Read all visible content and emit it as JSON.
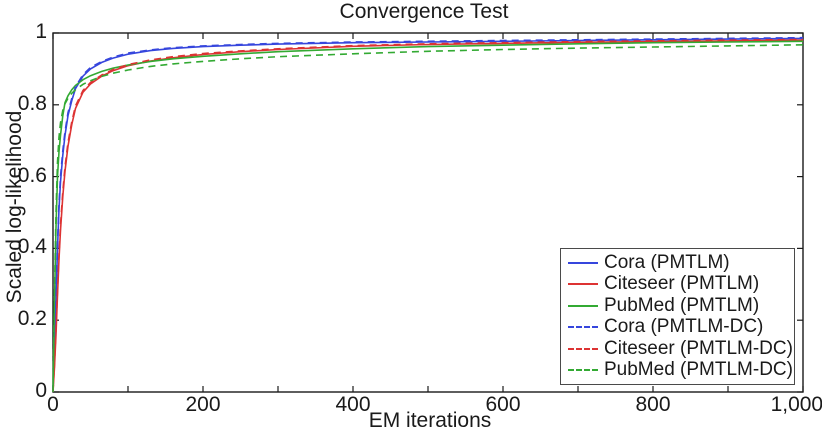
{
  "figure": {
    "title": "Convergence Test",
    "xlabel": "EM iterations",
    "ylabel": "Scaled log-likelihood"
  },
  "chart_data": {
    "type": "line",
    "title": "Convergence Test",
    "xlabel": "EM iterations",
    "ylabel": "Scaled log-likelihood",
    "xlim": [
      0,
      1000
    ],
    "ylim": [
      0,
      1
    ],
    "grid": false,
    "box": true,
    "tick_direction": "in",
    "legend_position": "bottom-right-inside",
    "xtick_values": [
      0,
      200,
      400,
      600,
      800,
      1000
    ],
    "xtick_labels": [
      "0",
      "200",
      "400",
      "600",
      "800",
      "1,000"
    ],
    "xticks_all": [
      0,
      100,
      200,
      300,
      400,
      500,
      600,
      700,
      800,
      900,
      1000
    ],
    "ytick_values": [
      0,
      0.2,
      0.4,
      0.6,
      0.8,
      1
    ],
    "ytick_labels": [
      "0",
      "0.2",
      "0.4",
      "0.6",
      "0.8",
      "1"
    ],
    "axis_color": "#1a1a1a",
    "x": [
      0,
      2,
      4,
      6,
      8,
      10,
      13,
      16,
      20,
      25,
      30,
      40,
      50,
      65,
      80,
      100,
      130,
      160,
      200,
      250,
      300,
      400,
      500,
      600,
      700,
      800,
      900,
      1000
    ],
    "series": [
      {
        "name": "Cora (PMTLM)",
        "color": "#3646dd",
        "dash": "solid",
        "values": [
          0,
          0.12,
          0.26,
          0.4,
          0.51,
          0.585,
          0.66,
          0.715,
          0.77,
          0.812,
          0.845,
          0.88,
          0.9,
          0.918,
          0.93,
          0.941,
          0.951,
          0.957,
          0.962,
          0.966,
          0.969,
          0.973,
          0.975,
          0.977,
          0.979,
          0.981,
          0.983,
          0.985
        ]
      },
      {
        "name": "Citeseer (PMTLM)",
        "color": "#dd3333",
        "dash": "solid",
        "values": [
          0,
          0.07,
          0.16,
          0.27,
          0.37,
          0.45,
          0.545,
          0.615,
          0.685,
          0.745,
          0.79,
          0.835,
          0.858,
          0.88,
          0.895,
          0.909,
          0.922,
          0.931,
          0.94,
          0.948,
          0.954,
          0.963,
          0.968,
          0.971,
          0.974,
          0.976,
          0.978,
          0.98
        ]
      },
      {
        "name": "PubMed (PMTLM)",
        "color": "#33aa33",
        "dash": "solid",
        "values": [
          0,
          0.25,
          0.46,
          0.6,
          0.67,
          0.715,
          0.77,
          0.806,
          0.825,
          0.842,
          0.854,
          0.87,
          0.881,
          0.893,
          0.902,
          0.911,
          0.921,
          0.928,
          0.935,
          0.942,
          0.948,
          0.956,
          0.962,
          0.966,
          0.97,
          0.973,
          0.975,
          0.977
        ]
      },
      {
        "name": "Cora (PMTLM-DC)",
        "color": "#3646dd",
        "dash": "dashed",
        "values": [
          0,
          0.13,
          0.275,
          0.415,
          0.525,
          0.6,
          0.672,
          0.725,
          0.778,
          0.818,
          0.85,
          0.884,
          0.904,
          0.921,
          0.933,
          0.944,
          0.953,
          0.959,
          0.964,
          0.968,
          0.971,
          0.975,
          0.977,
          0.979,
          0.981,
          0.983,
          0.985,
          0.987
        ]
      },
      {
        "name": "Citeseer (PMTLM-DC)",
        "color": "#dd3333",
        "dash": "dashed",
        "values": [
          0,
          0.08,
          0.175,
          0.285,
          0.385,
          0.465,
          0.558,
          0.627,
          0.695,
          0.753,
          0.797,
          0.84,
          0.862,
          0.883,
          0.898,
          0.912,
          0.925,
          0.934,
          0.943,
          0.95,
          0.956,
          0.965,
          0.97,
          0.973,
          0.976,
          0.978,
          0.98,
          0.982
        ]
      },
      {
        "name": "PubMed (PMTLM-DC)",
        "color": "#33aa33",
        "dash": "dashed",
        "values": [
          0,
          0.28,
          0.5,
          0.64,
          0.71,
          0.75,
          0.785,
          0.803,
          0.818,
          0.832,
          0.842,
          0.857,
          0.867,
          0.879,
          0.888,
          0.897,
          0.907,
          0.914,
          0.921,
          0.928,
          0.934,
          0.942,
          0.949,
          0.954,
          0.958,
          0.961,
          0.964,
          0.967
        ]
      }
    ]
  }
}
